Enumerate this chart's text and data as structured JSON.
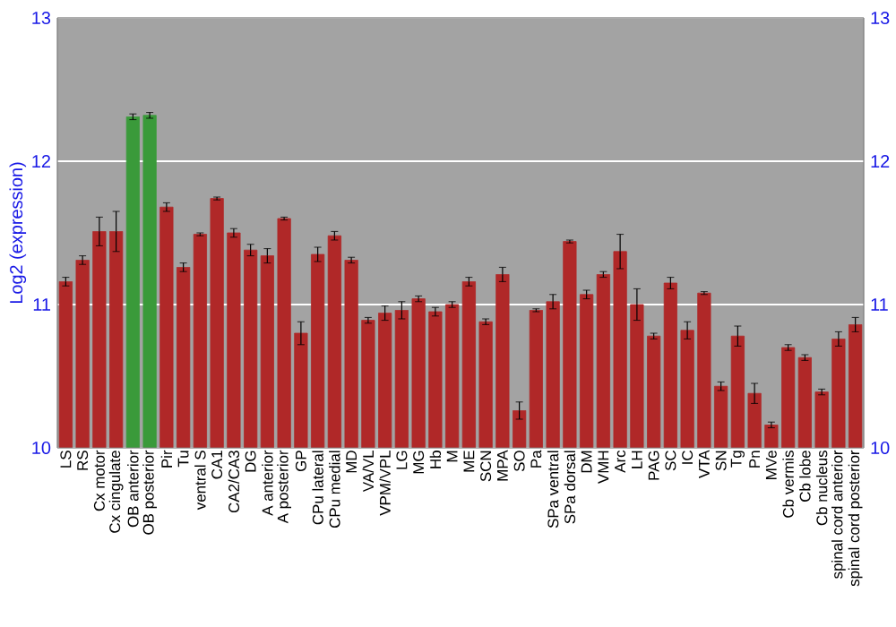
{
  "chart_data": {
    "type": "bar",
    "ylabel": "Log2 (expression)",
    "categories": [
      "LS",
      "RS",
      "Cx motor",
      "Cx cingulate",
      "OB anterior",
      "OB posterior",
      "Pir",
      "Tu",
      "ventral S",
      "CA1",
      "CA2/CA3",
      "DG",
      "A anterior",
      "A posterior",
      "GP",
      "CPu lateral",
      "CPu medial",
      "MD",
      "VA/VL",
      "VPM/VPL",
      "LG",
      "MG",
      "Hb",
      "M",
      "ME",
      "SCN",
      "MPA",
      "SO",
      "Pa",
      "SPa ventral",
      "SPa dorsal",
      "DM",
      "VMH",
      "Arc",
      "LH",
      "PAG",
      "SC",
      "IC",
      "VTA",
      "SN",
      "Tg",
      "Pn",
      "MVe",
      "Cb vermis",
      "Cb lobe",
      "Cb nucleus",
      "spinal cord anterior",
      "spinal cord posterior"
    ],
    "values": [
      11.16,
      11.31,
      11.51,
      11.51,
      12.31,
      12.32,
      11.68,
      11.26,
      11.49,
      11.74,
      11.5,
      11.38,
      11.34,
      11.6,
      10.8,
      11.35,
      11.48,
      11.31,
      10.89,
      10.94,
      10.96,
      11.04,
      10.95,
      11.0,
      11.16,
      10.88,
      11.21,
      10.26,
      10.96,
      11.02,
      11.44,
      11.07,
      11.21,
      11.37,
      11.0,
      10.78,
      11.15,
      10.82,
      11.08,
      10.43,
      10.78,
      10.38,
      10.16,
      10.7,
      10.63,
      10.39,
      10.76,
      10.86
    ],
    "errors": [
      0.03,
      0.03,
      0.1,
      0.14,
      0.02,
      0.02,
      0.03,
      0.03,
      0.01,
      0.01,
      0.03,
      0.04,
      0.05,
      0.01,
      0.08,
      0.05,
      0.03,
      0.02,
      0.02,
      0.05,
      0.06,
      0.02,
      0.03,
      0.02,
      0.03,
      0.02,
      0.05,
      0.06,
      0.01,
      0.05,
      0.01,
      0.03,
      0.02,
      0.12,
      0.11,
      0.02,
      0.04,
      0.06,
      0.01,
      0.03,
      0.07,
      0.07,
      0.02,
      0.02,
      0.02,
      0.02,
      0.05,
      0.05
    ],
    "colors": [
      "#b02828",
      "#b02828",
      "#b02828",
      "#b02828",
      "#3a9a3a",
      "#3a9a3a",
      "#b02828",
      "#b02828",
      "#b02828",
      "#b02828",
      "#b02828",
      "#b02828",
      "#b02828",
      "#b02828",
      "#b02828",
      "#b02828",
      "#b02828",
      "#b02828",
      "#b02828",
      "#b02828",
      "#b02828",
      "#b02828",
      "#b02828",
      "#b02828",
      "#b02828",
      "#b02828",
      "#b02828",
      "#b02828",
      "#b02828",
      "#b02828",
      "#b02828",
      "#b02828",
      "#b02828",
      "#b02828",
      "#b02828",
      "#b02828",
      "#b02828",
      "#b02828",
      "#b02828",
      "#b02828",
      "#b02828",
      "#b02828",
      "#b02828",
      "#b02828",
      "#b02828",
      "#b02828",
      "#b02828",
      "#b02828"
    ],
    "ylim": [
      10,
      13
    ],
    "yticks": [
      10,
      11,
      12,
      13
    ],
    "y2lim": [
      10,
      13
    ],
    "y2ticks": [
      10,
      11,
      12,
      13
    ],
    "grid": "y"
  }
}
